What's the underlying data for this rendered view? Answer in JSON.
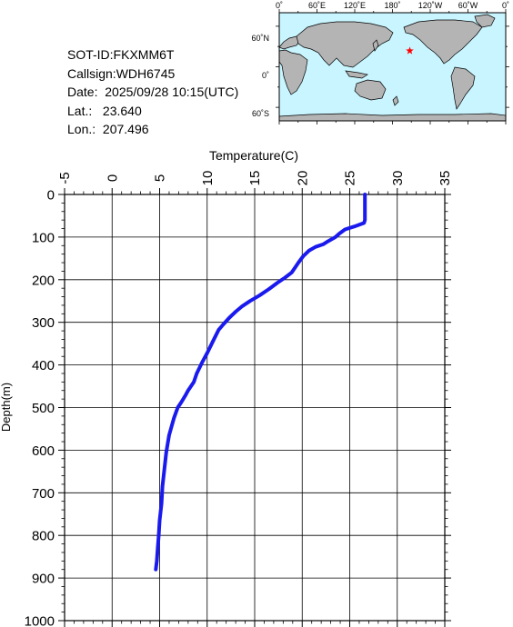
{
  "info": {
    "sot_id": "SOT-ID:FKXMM6T",
    "callsign": "Callsign:WDH6745",
    "date": "Date:  2025/09/28 10:15(UTC)",
    "lat": "Lat.:   23.640",
    "lon": "Lon.:  207.496"
  },
  "map": {
    "lon_labels": [
      "0˚",
      "60˚E",
      "120˚E",
      "180˚",
      "120˚W",
      "60˚W",
      "0˚"
    ],
    "lat_labels": [
      "60˚N",
      "0˚",
      "60˚S"
    ],
    "marker": {
      "lon": 207.496,
      "lat": 23.64,
      "color": "#ff0000"
    },
    "ocean_color": "#c8f5ff",
    "land_color": "#b4b4b4"
  },
  "chart_data": {
    "type": "line",
    "xlabel": "Temperature(C)",
    "ylabel": "Depth(m)",
    "xlim": [
      -5,
      35
    ],
    "ylim": [
      0,
      1000
    ],
    "y_inverted": true,
    "x_ticks": [
      "-5",
      "0",
      "5",
      "10",
      "15",
      "20",
      "25",
      "30",
      "35"
    ],
    "y_ticks": [
      "0",
      "100",
      "200",
      "300",
      "400",
      "500",
      "600",
      "700",
      "800",
      "900",
      "1000"
    ],
    "grid": true,
    "series": [
      {
        "color": "#1a1aee",
        "points": [
          [
            26.6,
            0
          ],
          [
            26.6,
            20
          ],
          [
            26.6,
            40
          ],
          [
            26.6,
            60
          ],
          [
            26.5,
            67
          ],
          [
            25.5,
            75
          ],
          [
            24.5,
            82
          ],
          [
            23.9,
            92
          ],
          [
            23.5,
            100
          ],
          [
            22.7,
            110
          ],
          [
            22.2,
            117
          ],
          [
            21.4,
            123
          ],
          [
            20.7,
            132
          ],
          [
            20.1,
            145
          ],
          [
            19.6,
            160
          ],
          [
            19.3,
            170
          ],
          [
            18.9,
            183
          ],
          [
            18.2,
            195
          ],
          [
            17.4,
            207
          ],
          [
            16.5,
            222
          ],
          [
            15.5,
            237
          ],
          [
            14.5,
            250
          ],
          [
            13.7,
            262
          ],
          [
            13.0,
            275
          ],
          [
            12.3,
            290
          ],
          [
            11.7,
            305
          ],
          [
            11.2,
            318
          ],
          [
            10.6,
            345
          ],
          [
            10.0,
            372
          ],
          [
            9.5,
            393
          ],
          [
            8.9,
            420
          ],
          [
            8.6,
            440
          ],
          [
            8.0,
            460
          ],
          [
            7.7,
            472
          ],
          [
            7.3,
            487
          ],
          [
            6.9,
            500
          ],
          [
            6.5,
            525
          ],
          [
            6.0,
            565
          ],
          [
            5.7,
            605
          ],
          [
            5.5,
            645
          ],
          [
            5.3,
            685
          ],
          [
            5.2,
            725
          ],
          [
            5.0,
            765
          ],
          [
            4.9,
            800
          ],
          [
            4.8,
            830
          ],
          [
            4.7,
            860
          ],
          [
            4.6,
            880
          ]
        ]
      }
    ]
  }
}
